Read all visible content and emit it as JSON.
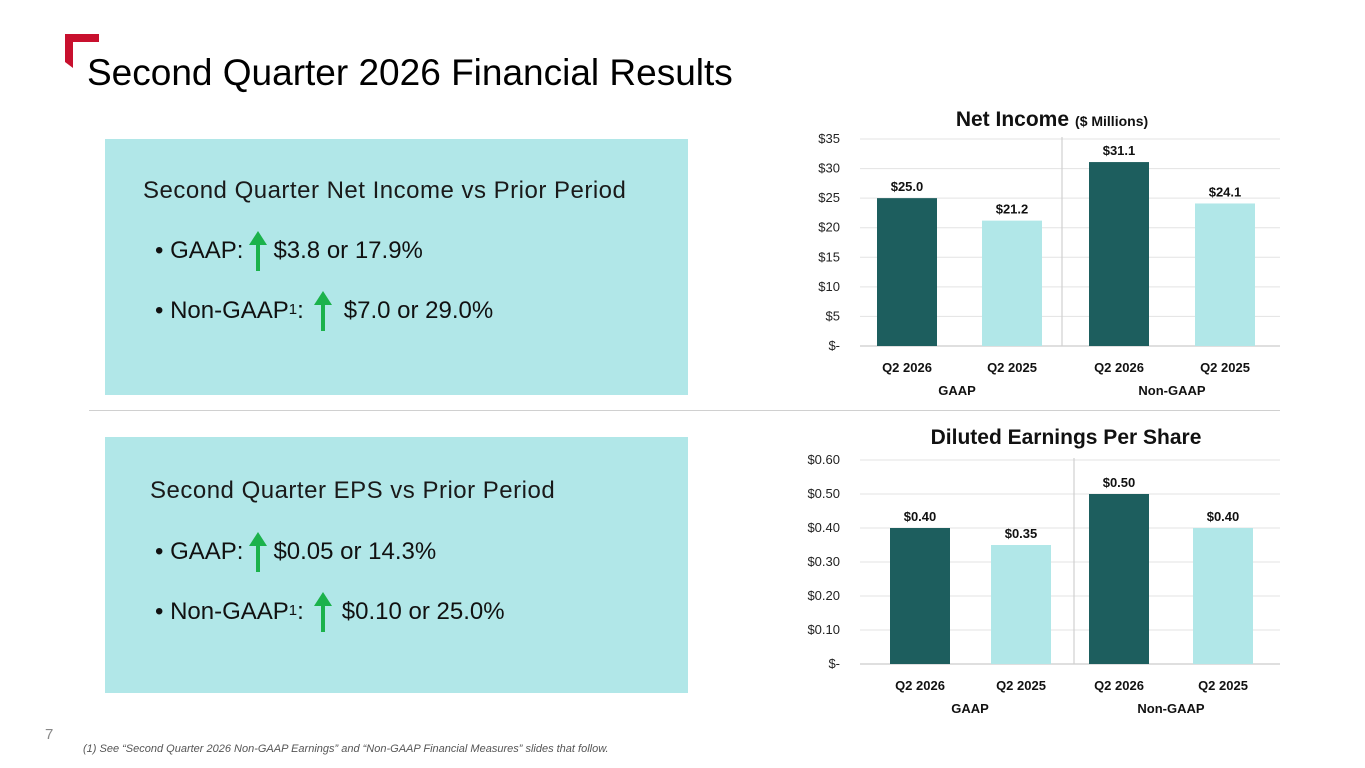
{
  "slide": {
    "title": "Second Quarter 2026 Financial Results",
    "page_number": "7",
    "footnote": "(1) See “Second Quarter 2026 Non-GAAP Earnings” and “Non-GAAP Financial Measures” slides that follow.",
    "colors": {
      "brand_red": "#c8102e",
      "panel_bg": "#b1e7e8",
      "dark_teal": "#1d5e5e",
      "light_teal": "#b1e7e8",
      "up_arrow": "#1bb24b"
    }
  },
  "panels": {
    "net_income": {
      "heading": "Second Quarter Net Income vs Prior Period",
      "gaap_label": "• GAAP:",
      "gaap_value": "$3.8 or 17.9%",
      "nongaap_label": "• Non-GAAP",
      "nongaap_sup": "1",
      "nongaap_colon": ":",
      "nongaap_value": "$7.0 or 29.0%"
    },
    "eps": {
      "heading": "Second Quarter EPS vs Prior Period",
      "gaap_label": "• GAAP:",
      "gaap_value": "$0.05 or 14.3%",
      "nongaap_label": "• Non-GAAP",
      "nongaap_sup": "1",
      "nongaap_colon": ":",
      "nongaap_value": "$0.10 or 25.0%"
    }
  },
  "chart_data": [
    {
      "type": "bar",
      "title": "Net Income",
      "subtitle": "($ Millions)",
      "categories": [
        "Q2 2026",
        "Q2 2025",
        "Q2 2026",
        "Q2 2025"
      ],
      "groups": [
        "GAAP",
        "Non-GAAP"
      ],
      "values": [
        25.0,
        21.2,
        31.1,
        24.1
      ],
      "data_labels": [
        "$25.0",
        "$21.2",
        "$31.1",
        "$24.1"
      ],
      "bar_colors": [
        "#1d5e5e",
        "#b1e7e8",
        "#1d5e5e",
        "#b1e7e8"
      ],
      "ylim": [
        0,
        35
      ],
      "yticks": [
        0,
        5,
        10,
        15,
        20,
        25,
        30,
        35
      ],
      "ytick_labels": [
        "$-",
        "$5",
        "$10",
        "$15",
        "$20",
        "$25",
        "$30",
        "$35"
      ],
      "grid": true
    },
    {
      "type": "bar",
      "title": "Diluted Earnings Per Share",
      "subtitle": "",
      "categories": [
        "Q2 2026",
        "Q2 2025",
        "Q2 2026",
        "Q2 2025"
      ],
      "groups": [
        "GAAP",
        "Non-GAAP"
      ],
      "values": [
        0.4,
        0.35,
        0.5,
        0.4
      ],
      "data_labels": [
        "$0.40",
        "$0.35",
        "$0.50",
        "$0.40"
      ],
      "bar_colors": [
        "#1d5e5e",
        "#b1e7e8",
        "#1d5e5e",
        "#b1e7e8"
      ],
      "ylim": [
        0,
        0.6
      ],
      "yticks": [
        0,
        0.1,
        0.2,
        0.3,
        0.4,
        0.5,
        0.6
      ],
      "ytick_labels": [
        "$-",
        "$0.10",
        "$0.20",
        "$0.30",
        "$0.40",
        "$0.50",
        "$0.60"
      ],
      "grid": true
    }
  ]
}
